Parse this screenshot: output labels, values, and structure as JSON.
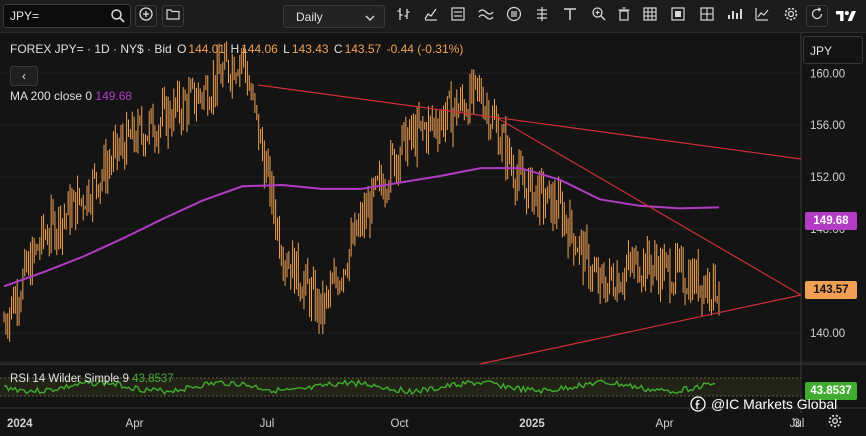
{
  "toolbar": {
    "symbol_value": "JPY=",
    "interval_label": "Daily",
    "icons": [
      "search-icon",
      "add-compare-icon",
      "folder-icon",
      "chevron-down-icon",
      "bar-style-icon",
      "candle-style-icon",
      "indicator-icon",
      "pattern-icon",
      "draw-icon",
      "event-icon",
      "hash-icon",
      "text-tool-icon",
      "zoom-icon",
      "trash-icon",
      "layout-icon",
      "select-icon",
      "chart-settings-icon",
      "reset-icon",
      "tradingview-logo"
    ]
  },
  "legend": {
    "symbol_line": "FOREX JPY= · 1D · NY$ · Bid",
    "o_label": "O",
    "o_value": "144.01",
    "h_label": "H",
    "h_value": "144.06",
    "l_label": "L",
    "l_value": "143.43",
    "c_label": "C",
    "c_value": "143.57",
    "change": "-0.44 (-0.31%)",
    "back_glyph": "‹"
  },
  "ma": {
    "label": "MA 200 close 0",
    "value": "149.68",
    "color": "#b23cc4"
  },
  "rsi": {
    "label": "RSI 14 Wilder Simple 9",
    "value": "43.8537",
    "color": "#3fae2e"
  },
  "price_axis": {
    "currency": "JPY",
    "ticks": [
      "160.00",
      "156.00",
      "152.00",
      "148.00",
      "140.00"
    ],
    "last_price": "143.57",
    "ma_badge": "149.68",
    "rsi_badge": "43.8537"
  },
  "time_axis": {
    "ticks": [
      "2024",
      "Apr",
      "Jul",
      "Oct",
      "2025",
      "Apr",
      "Jul",
      "3"
    ]
  },
  "watermark": "@IC Markets Global",
  "colors": {
    "candle": "#f0a054",
    "trendline": "#d02f3a",
    "background": "#141414"
  },
  "chart_data": {
    "type": "line",
    "title": "FOREX JPY= · 1D · NY$ · Bid",
    "ylim": [
      137.7,
      163.1
    ],
    "x": [
      "2024-01",
      "2024-02",
      "2024-03",
      "2024-04",
      "2024-05",
      "2024-06",
      "2024-07",
      "2024-08",
      "2024-09",
      "2024-10",
      "2024-11",
      "2024-12",
      "2025-01",
      "2025-02",
      "2025-03",
      "2025-04",
      "2025-05",
      "2025-06",
      "2025-07"
    ],
    "series": [
      {
        "name": "JPY=",
        "values": [
          141.0,
          147.5,
          150.5,
          154.5,
          156.5,
          158.5,
          161.5,
          146.5,
          141.5,
          148.5,
          154.5,
          156.5,
          158.5,
          151.5,
          149.5,
          143.5,
          145.5,
          144.5,
          143.57
        ]
      },
      {
        "name": "MA 200 close 0",
        "values": [
          143.6,
          144.7,
          145.9,
          147.3,
          148.8,
          150.2,
          151.3,
          151.4,
          151.1,
          151.1,
          151.6,
          152.1,
          152.7,
          152.7,
          151.8,
          150.3,
          149.8,
          149.6,
          149.68
        ]
      }
    ]
  }
}
